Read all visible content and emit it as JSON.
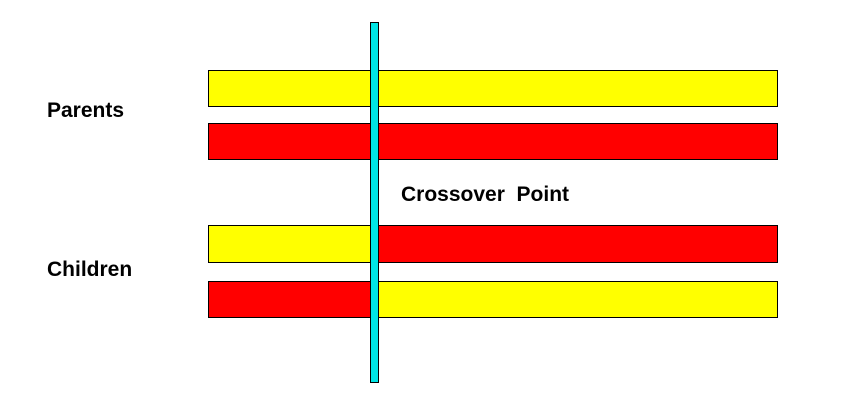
{
  "labels": {
    "parents": "Parents",
    "children": "Children",
    "crossover": "Crossover  Point"
  },
  "colors": {
    "yellow": "#FFFF00",
    "red": "#FF0000",
    "crossover_line": "#00E5E5",
    "outline": "#000000"
  },
  "chromosomes": {
    "parent_1": [
      "yellow",
      "yellow"
    ],
    "parent_2": [
      "red",
      "red"
    ],
    "child_1": [
      "yellow",
      "red"
    ],
    "child_2": [
      "red",
      "yellow"
    ]
  }
}
